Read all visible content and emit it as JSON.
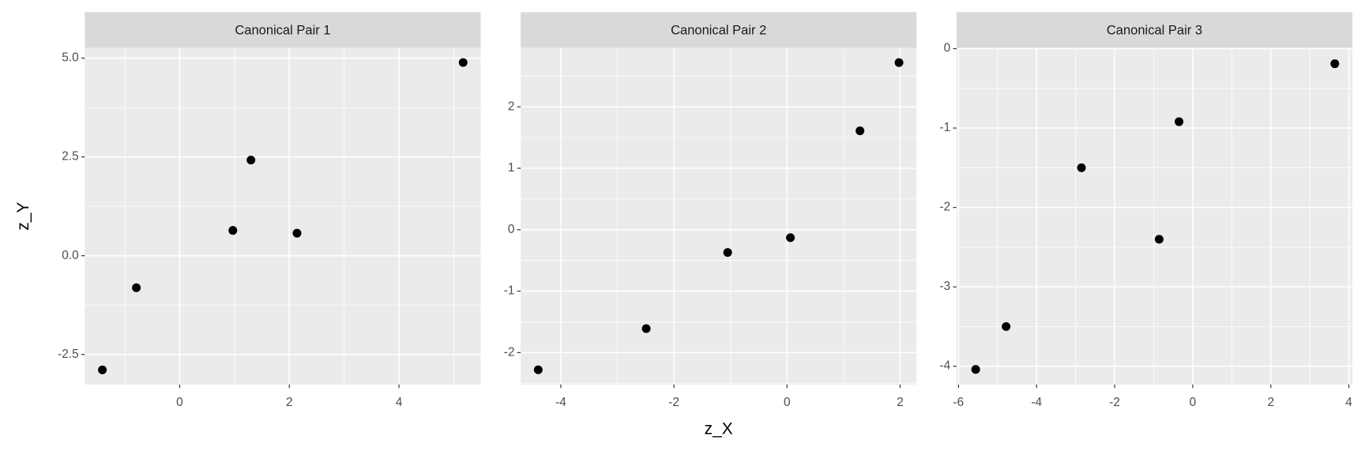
{
  "chart_data": [
    {
      "type": "scatter",
      "title": "Canonical Pair 1",
      "ylabel": "z_Y",
      "x": [
        -1.41,
        -0.79,
        0.97,
        1.3,
        2.14,
        5.17
      ],
      "values": [
        -2.89,
        -0.81,
        0.64,
        2.42,
        0.57,
        4.89
      ],
      "color": "#000000",
      "xlim": [
        -1.73,
        5.49
      ],
      "xticks": [
        0,
        2,
        4
      ],
      "ylim": [
        -3.26,
        5.26
      ],
      "yticks": [
        {
          "value": -2.5,
          "label": "-2.5"
        },
        {
          "value": 0,
          "label": "0.0"
        },
        {
          "value": 2.5,
          "label": "2.5"
        },
        {
          "value": 5,
          "label": "5.0"
        }
      ],
      "grid": true,
      "minor_grid": true
    },
    {
      "type": "scatter",
      "title": "Canonical Pair 2",
      "xlabel": "z_X",
      "x": [
        -4.4,
        -2.49,
        -1.05,
        0.06,
        1.29,
        1.98
      ],
      "values": [
        -2.28,
        -1.61,
        -0.37,
        -0.13,
        1.61,
        2.72
      ],
      "color": "#000000",
      "xlim": [
        -4.71,
        2.29
      ],
      "xticks": [
        -4,
        -2,
        0,
        2
      ],
      "ylim": [
        -2.52,
        2.96
      ],
      "yticks": [
        -2,
        -1,
        0,
        1,
        2
      ],
      "grid": true,
      "minor_grid": true
    },
    {
      "type": "scatter",
      "title": "Canonical Pair 3",
      "x": [
        -5.56,
        -4.78,
        -2.85,
        -0.86,
        -0.35,
        3.64
      ],
      "values": [
        -4.04,
        -3.5,
        -1.5,
        -2.4,
        -0.92,
        -0.19
      ],
      "color": "#000000",
      "xlim": [
        -6.05,
        4.09
      ],
      "xticks": [
        -6,
        -4,
        -2,
        0,
        2,
        4
      ],
      "ylim": [
        -4.23,
        0.01
      ],
      "yticks": [
        -4,
        -3,
        -2,
        -1,
        0
      ],
      "grid": true,
      "minor_grid": true
    }
  ]
}
